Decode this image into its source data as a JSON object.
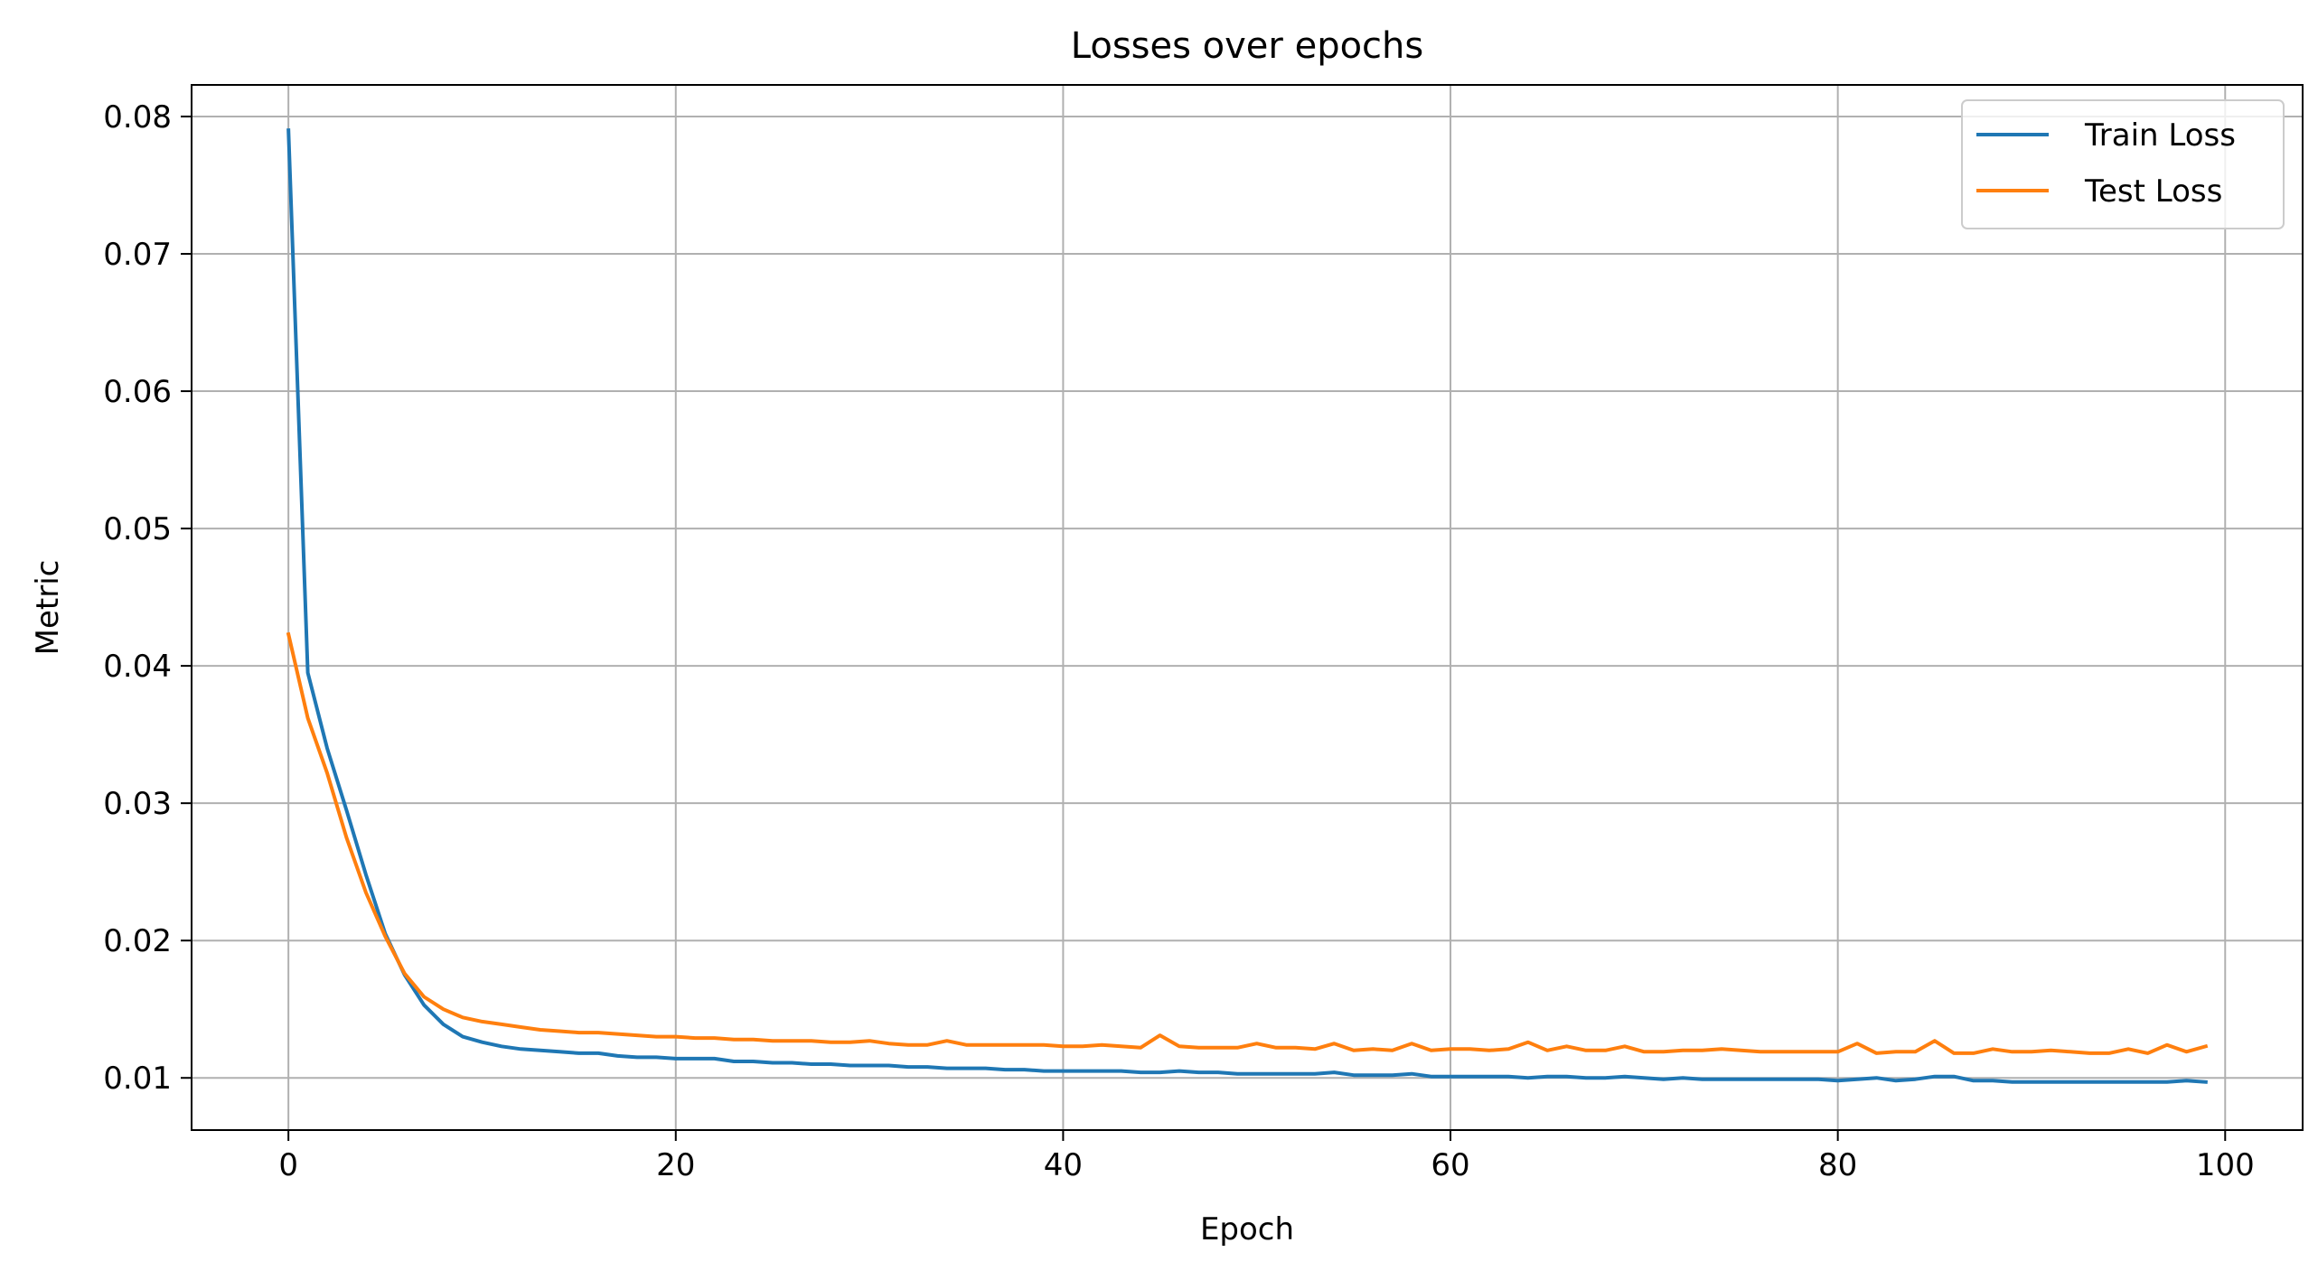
{
  "chart_data": {
    "type": "line",
    "title": "Losses over epochs",
    "xlabel": "Epoch",
    "ylabel": "Metric",
    "xlim": [
      -5,
      104
    ],
    "ylim": [
      0.0062,
      0.0823
    ],
    "xticks": [
      0,
      20,
      40,
      60,
      80,
      100
    ],
    "yticks": [
      0.01,
      0.02,
      0.03,
      0.04,
      0.05,
      0.06,
      0.07,
      0.08
    ],
    "xtick_labels": [
      "0",
      "20",
      "40",
      "60",
      "80",
      "100"
    ],
    "ytick_labels": [
      "0.01",
      "0.02",
      "0.03",
      "0.04",
      "0.05",
      "0.06",
      "0.07",
      "0.08"
    ],
    "grid": true,
    "legend_position": "top-right",
    "series": [
      {
        "name": "Train Loss",
        "color": "#1f77b4",
        "x": [
          0,
          1,
          2,
          3,
          4,
          5,
          6,
          7,
          8,
          9,
          10,
          11,
          12,
          13,
          14,
          15,
          16,
          17,
          18,
          19,
          20,
          21,
          22,
          23,
          24,
          25,
          26,
          27,
          28,
          29,
          30,
          31,
          32,
          33,
          34,
          35,
          36,
          37,
          38,
          39,
          40,
          41,
          42,
          43,
          44,
          45,
          46,
          47,
          48,
          49,
          50,
          51,
          52,
          53,
          54,
          55,
          56,
          57,
          58,
          59,
          60,
          61,
          62,
          63,
          64,
          65,
          66,
          67,
          68,
          69,
          70,
          71,
          72,
          73,
          74,
          75,
          76,
          77,
          78,
          79,
          80,
          81,
          82,
          83,
          84,
          85,
          86,
          87,
          88,
          89,
          90,
          91,
          92,
          93,
          94,
          95,
          96,
          97,
          98,
          99
        ],
        "values": [
          0.079,
          0.0395,
          0.034,
          0.0295,
          0.0248,
          0.0205,
          0.0175,
          0.0153,
          0.0139,
          0.013,
          0.0126,
          0.0123,
          0.0121,
          0.012,
          0.0119,
          0.0118,
          0.0118,
          0.0116,
          0.0115,
          0.0115,
          0.0114,
          0.0114,
          0.0114,
          0.0112,
          0.0112,
          0.0111,
          0.0111,
          0.011,
          0.011,
          0.0109,
          0.0109,
          0.0109,
          0.0108,
          0.0108,
          0.0107,
          0.0107,
          0.0107,
          0.0106,
          0.0106,
          0.0105,
          0.0105,
          0.0105,
          0.0105,
          0.0105,
          0.0104,
          0.0104,
          0.0105,
          0.0104,
          0.0104,
          0.0103,
          0.0103,
          0.0103,
          0.0103,
          0.0103,
          0.0104,
          0.0102,
          0.0102,
          0.0102,
          0.0103,
          0.0101,
          0.0101,
          0.0101,
          0.0101,
          0.0101,
          0.01,
          0.0101,
          0.0101,
          0.01,
          0.01,
          0.0101,
          0.01,
          0.0099,
          0.01,
          0.0099,
          0.0099,
          0.0099,
          0.0099,
          0.0099,
          0.0099,
          0.0099,
          0.0098,
          0.0099,
          0.01,
          0.0098,
          0.0099,
          0.0101,
          0.0101,
          0.0098,
          0.0098,
          0.0097,
          0.0097,
          0.0097,
          0.0097,
          0.0097,
          0.0097,
          0.0097,
          0.0097,
          0.0097,
          0.0098,
          0.0097
        ]
      },
      {
        "name": "Test Loss",
        "color": "#ff7f0e",
        "x": [
          0,
          1,
          2,
          3,
          4,
          5,
          6,
          7,
          8,
          9,
          10,
          11,
          12,
          13,
          14,
          15,
          16,
          17,
          18,
          19,
          20,
          21,
          22,
          23,
          24,
          25,
          26,
          27,
          28,
          29,
          30,
          31,
          32,
          33,
          34,
          35,
          36,
          37,
          38,
          39,
          40,
          41,
          42,
          43,
          44,
          45,
          46,
          47,
          48,
          49,
          50,
          51,
          52,
          53,
          54,
          55,
          56,
          57,
          58,
          59,
          60,
          61,
          62,
          63,
          64,
          65,
          66,
          67,
          68,
          69,
          70,
          71,
          72,
          73,
          74,
          75,
          76,
          77,
          78,
          79,
          80,
          81,
          82,
          83,
          84,
          85,
          86,
          87,
          88,
          89,
          90,
          91,
          92,
          93,
          94,
          95,
          96,
          97,
          98,
          99
        ],
        "values": [
          0.0423,
          0.0362,
          0.0322,
          0.0275,
          0.0235,
          0.0203,
          0.0176,
          0.0159,
          0.015,
          0.0144,
          0.0141,
          0.0139,
          0.0137,
          0.0135,
          0.0134,
          0.0133,
          0.0133,
          0.0132,
          0.0131,
          0.013,
          0.013,
          0.0129,
          0.0129,
          0.0128,
          0.0128,
          0.0127,
          0.0127,
          0.0127,
          0.0126,
          0.0126,
          0.0127,
          0.0125,
          0.0124,
          0.0124,
          0.0127,
          0.0124,
          0.0124,
          0.0124,
          0.0124,
          0.0124,
          0.0123,
          0.0123,
          0.0124,
          0.0123,
          0.0122,
          0.0131,
          0.0123,
          0.0122,
          0.0122,
          0.0122,
          0.0125,
          0.0122,
          0.0122,
          0.0121,
          0.0125,
          0.012,
          0.0121,
          0.012,
          0.0125,
          0.012,
          0.0121,
          0.0121,
          0.012,
          0.0121,
          0.0126,
          0.012,
          0.0123,
          0.012,
          0.012,
          0.0123,
          0.0119,
          0.0119,
          0.012,
          0.012,
          0.0121,
          0.012,
          0.0119,
          0.0119,
          0.0119,
          0.0119,
          0.0119,
          0.0125,
          0.0118,
          0.0119,
          0.0119,
          0.0127,
          0.0118,
          0.0118,
          0.0121,
          0.0119,
          0.0119,
          0.012,
          0.0119,
          0.0118,
          0.0118,
          0.0121,
          0.0118,
          0.0124,
          0.0119,
          0.0123
        ]
      }
    ]
  }
}
